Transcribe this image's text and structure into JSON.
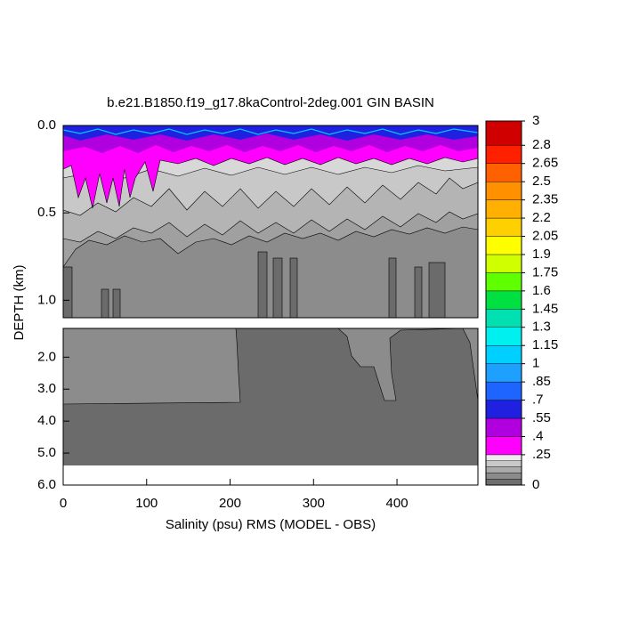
{
  "chart_data": {
    "type": "contour",
    "title": "b.e21.B1850.f19_g17.8kaControl-2deg.001 GIN BASIN",
    "xlabel": "Salinity (psu) RMS (MODEL - OBS)",
    "ylabel": "DEPTH (km)",
    "xlim": [
      0,
      497
    ],
    "xticks": [
      0,
      100,
      200,
      300,
      400
    ],
    "panels": [
      {
        "ylim": [
          0,
          1.1
        ],
        "yticks": [
          {
            "value": 0,
            "label": "0.0"
          },
          {
            "value": 0.5,
            "label": "0.5"
          },
          {
            "value": 1,
            "label": "1.0"
          }
        ]
      },
      {
        "ylim": [
          1.1,
          6
        ],
        "yticks": [
          {
            "value": 2,
            "label": "2.0"
          },
          {
            "value": 3,
            "label": "3.0"
          },
          {
            "value": 4,
            "label": "4.0"
          },
          {
            "value": 5,
            "label": "5.0"
          },
          {
            "value": 6,
            "label": "6.0"
          }
        ]
      }
    ],
    "colorbar": {
      "levels": [
        0,
        0.05,
        0.1,
        0.15,
        0.2,
        0.25,
        0.4,
        0.55,
        0.7,
        0.85,
        1,
        1.15,
        1.3,
        1.45,
        1.6,
        1.75,
        1.9,
        2.05,
        2.2,
        2.35,
        2.5,
        2.65,
        2.8,
        3
      ],
      "colors": [
        "#6e6e6e",
        "#8c8c8c",
        "#aaaaaa",
        "#c8c8c8",
        "#ececec",
        "#ff00ff",
        "#b000e0",
        "#2020e0",
        "#1e64ff",
        "#1ea0ff",
        "#00d0ff",
        "#00f0f0",
        "#00e0b0",
        "#00e040",
        "#60ff00",
        "#d0ff00",
        "#ffff00",
        "#ffd000",
        "#ffb000",
        "#ff9000",
        "#ff6000",
        "#ff2000",
        "#d00000"
      ],
      "ticks": [
        3,
        2.8,
        2.65,
        2.5,
        2.35,
        2.2,
        2.05,
        1.9,
        1.75,
        1.6,
        1.45,
        1.3,
        1.15,
        1,
        {
          "value": 0.85,
          "label": ".85"
        },
        {
          "value": 0.7,
          "label": ".7"
        },
        {
          "value": 0.55,
          "label": ".55"
        },
        {
          "value": 0.4,
          "label": ".4"
        },
        {
          "value": 0.25,
          "label": ".25"
        },
        0
      ],
      "clim": [
        0,
        3
      ]
    }
  }
}
